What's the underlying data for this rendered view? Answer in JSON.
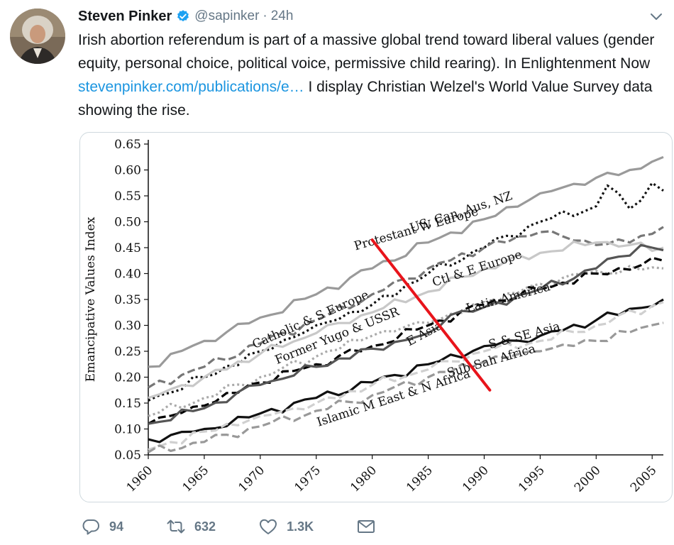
{
  "tweet": {
    "author_name": "Steven Pinker",
    "handle": "@sapinker",
    "separator": "·",
    "time": "24h",
    "text_part1": "Irish abortion referendum is part of a massive global trend toward liberal values (gender equity, personal choice, political voice, permissive child rearing). In Enlightenment Now ",
    "link_text": "stevenpinker.com/publications/e…",
    "text_part2": " I display Christian Welzel's World Value Survey data showing the rise."
  },
  "actions": {
    "reply_count": "94",
    "retweet_count": "632",
    "like_count": "1.3K"
  },
  "colors": {
    "accent": "#1da1f2",
    "link": "#1b95e0",
    "muted": "#657786",
    "annotation": "#e8141b"
  },
  "icons": [
    "verified-icon",
    "chevron-down-icon",
    "reply-icon",
    "retweet-icon",
    "like-icon",
    "mail-icon"
  ],
  "chart_data": {
    "type": "line",
    "title": "",
    "xlabel": "",
    "ylabel": "Emancipative Values Index",
    "xlim": [
      1960,
      2006
    ],
    "ylim": [
      0.05,
      0.65
    ],
    "x_ticks": [
      "1960",
      "1965",
      "1970",
      "1975",
      "1980",
      "1985",
      "1990",
      "1995",
      "2000",
      "2005"
    ],
    "y_ticks": [
      "0.05",
      "0.10",
      "0.15",
      "0.20",
      "0.25",
      "0.30",
      "0.35",
      "0.40",
      "0.45",
      "0.50",
      "0.55",
      "0.60",
      "0.65"
    ],
    "grid": false,
    "legend": "none (series labeled inline)",
    "series": [
      {
        "name": "Protestant W Europe",
        "color": "#9a9a9a",
        "dash": "solid",
        "x": [
          1960,
          1965,
          1970,
          1975,
          1980,
          1985,
          1990,
          1995,
          2000,
          2003,
          2006
        ],
        "y": [
          0.22,
          0.27,
          0.315,
          0.36,
          0.41,
          0.46,
          0.505,
          0.555,
          0.585,
          0.6,
          0.625
        ]
      },
      {
        "name": "US, Can, Aus, NZ",
        "color": "#111111",
        "dash": "dotted",
        "x": [
          1960,
          1965,
          1970,
          1975,
          1980,
          1985,
          1990,
          1995,
          2000,
          2001,
          2003,
          2005,
          2006
        ],
        "y": [
          0.155,
          0.2,
          0.25,
          0.3,
          0.34,
          0.4,
          0.45,
          0.5,
          0.53,
          0.57,
          0.525,
          0.575,
          0.56
        ]
      },
      {
        "name": "Catholic & S Europe",
        "color": "#777777",
        "dash": "dashed",
        "x": [
          1960,
          1965,
          1970,
          1975,
          1980,
          1985,
          1990,
          1995,
          2000,
          2003,
          2006
        ],
        "y": [
          0.18,
          0.22,
          0.265,
          0.31,
          0.36,
          0.41,
          0.45,
          0.48,
          0.455,
          0.46,
          0.49
        ]
      },
      {
        "name": "Ctl & E Europe",
        "color": "#c8c8c8",
        "dash": "solid",
        "x": [
          1960,
          1965,
          1970,
          1975,
          1980,
          1985,
          1990,
          1995,
          2000,
          2003,
          2006
        ],
        "y": [
          0.16,
          0.2,
          0.245,
          0.285,
          0.325,
          0.365,
          0.41,
          0.44,
          0.46,
          0.455,
          0.45
        ]
      },
      {
        "name": "Former Yugo & USSR",
        "color": "#aaaaaa",
        "dash": "dotted",
        "x": [
          1960,
          1965,
          1970,
          1975,
          1980,
          1985,
          1990,
          1995,
          2000,
          2006
        ],
        "y": [
          0.125,
          0.16,
          0.2,
          0.24,
          0.28,
          0.305,
          0.34,
          0.38,
          0.405,
          0.41
        ]
      },
      {
        "name": "Latin America",
        "color": "#000000",
        "dash": "dashed",
        "x": [
          1960,
          1965,
          1970,
          1975,
          1980,
          1985,
          1990,
          1995,
          2000,
          2006
        ],
        "y": [
          0.11,
          0.145,
          0.19,
          0.225,
          0.26,
          0.3,
          0.34,
          0.37,
          0.4,
          0.425
        ]
      },
      {
        "name": "E Asia",
        "color": "#555555",
        "dash": "solid",
        "x": [
          1960,
          1965,
          1970,
          1975,
          1980,
          1985,
          1987,
          1990,
          1995,
          2000,
          2004,
          2006
        ],
        "y": [
          0.11,
          0.14,
          0.185,
          0.22,
          0.255,
          0.285,
          0.32,
          0.335,
          0.37,
          0.41,
          0.455,
          0.445
        ]
      },
      {
        "name": "S & SE Asia",
        "color": "#111111",
        "dash": "solid",
        "x": [
          1960,
          1965,
          1970,
          1975,
          1980,
          1985,
          1990,
          1995,
          2000,
          2006
        ],
        "y": [
          0.08,
          0.1,
          0.13,
          0.16,
          0.19,
          0.225,
          0.26,
          0.28,
          0.31,
          0.35
        ]
      },
      {
        "name": "Sub-Sah Africa",
        "color": "#d0d0d0",
        "dash": "dashed",
        "x": [
          1960,
          1965,
          1970,
          1975,
          1980,
          1985,
          1990,
          1995,
          2000,
          2006
        ],
        "y": [
          0.06,
          0.095,
          0.125,
          0.15,
          0.185,
          0.215,
          0.25,
          0.27,
          0.3,
          0.345
        ]
      },
      {
        "name": "Islamic M East & N Africa",
        "color": "#999999",
        "dash": "dashed",
        "x": [
          1960,
          1965,
          1970,
          1975,
          1980,
          1985,
          1990,
          1995,
          2000,
          2006
        ],
        "y": [
          0.055,
          0.075,
          0.105,
          0.135,
          0.165,
          0.2,
          0.23,
          0.25,
          0.27,
          0.305
        ]
      }
    ],
    "annotation": {
      "type": "line",
      "color": "#e8141b",
      "x": [
        1980,
        1990.5
      ],
      "y": [
        0.465,
        0.175
      ]
    }
  }
}
